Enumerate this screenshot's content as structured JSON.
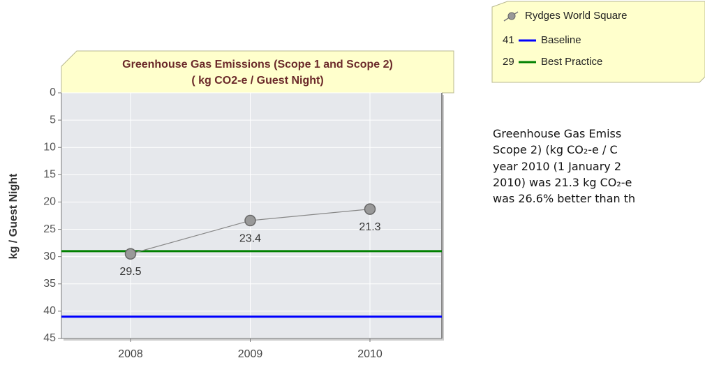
{
  "chart_data": {
    "type": "line",
    "title": [
      "Greenhouse Gas Emissions (Scope 1 and Scope 2)",
      "( kg CO2-e / Guest Night)"
    ],
    "y_label": "kg / Guest Night",
    "categories": [
      "2008",
      "2009",
      "2010"
    ],
    "series": [
      {
        "name": "Rydges World Square",
        "color": "#999999",
        "values": [
          29.5,
          23.4,
          21.3
        ]
      }
    ],
    "reference_lines": [
      {
        "name": "Baseline",
        "value": 41,
        "color": "#0000ff"
      },
      {
        "name": "Best Practice",
        "value": 29,
        "color": "#008000"
      }
    ],
    "ylim": [
      0,
      45
    ],
    "yticks": [
      0,
      5,
      10,
      15,
      20,
      25,
      30,
      35,
      40,
      45
    ],
    "y_inverted": true,
    "grid": true
  },
  "description": {
    "lines": [
      "Greenhouse Gas Emiss",
      "Scope 2) (kg CO₂-e / C",
      "year 2010 (1 January 2",
      "2010) was 21.3 kg CO₂-e",
      "was 26.6% better than th"
    ]
  }
}
